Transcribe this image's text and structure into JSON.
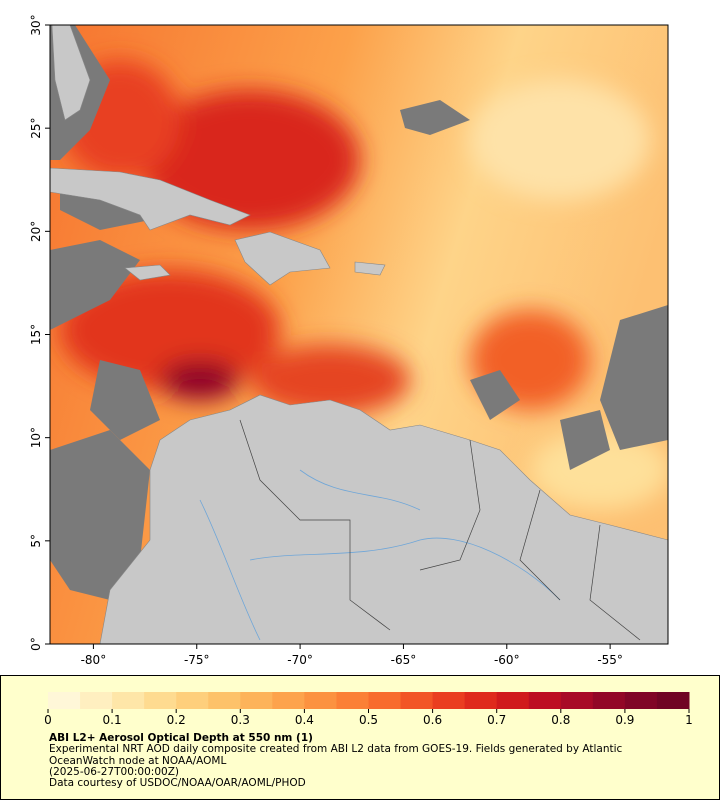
{
  "map": {
    "xlim": [
      -82.1,
      -52.2
    ],
    "ylim": [
      0,
      30
    ],
    "xticks": [
      {
        "value": -80,
        "label": "-80°"
      },
      {
        "value": -75,
        "label": "-75°"
      },
      {
        "value": -70,
        "label": "-70°"
      },
      {
        "value": -65,
        "label": "-65°"
      },
      {
        "value": -60,
        "label": "-60°"
      },
      {
        "value": -55,
        "label": "-55°"
      }
    ],
    "yticks": [
      {
        "value": 0,
        "label": "0°"
      },
      {
        "value": 5,
        "label": "5°"
      },
      {
        "value": 10,
        "label": "10°"
      },
      {
        "value": 15,
        "label": "15°"
      },
      {
        "value": 20,
        "label": "20°"
      },
      {
        "value": 25,
        "label": "25°"
      },
      {
        "value": 30,
        "label": "30°"
      }
    ]
  },
  "colorbar": {
    "title": "ABI L2+ Aerosol Optical Depth at 550 nm (1)",
    "lim": [
      0,
      1
    ],
    "ticks": [
      0,
      0.1,
      0.2,
      0.3,
      0.4,
      0.5,
      0.6,
      0.7,
      0.8,
      0.9,
      1
    ],
    "colors": [
      "#fff7d8",
      "#ffefc0",
      "#fee6a8",
      "#fedb90",
      "#fecf7c",
      "#fdc26a",
      "#fdb35a",
      "#fda34c",
      "#fc9240",
      "#fb8036",
      "#f86c2d",
      "#f25526",
      "#ea3e20",
      "#df2a1c",
      "#d01a1c",
      "#bd0e22",
      "#a80a26",
      "#920726",
      "#800526",
      "#700424"
    ]
  },
  "caption": [
    "Experimental NRT AOD daily composite created from ABI L2 data from GOES-19. Fields generated by Atlantic OceanWatch node at NOAA/AOML",
    "(2025-06-27T00:00:00Z)",
    "Data courtesy of USDOC/NOAA/OAR/AOML/PHOD"
  ]
}
